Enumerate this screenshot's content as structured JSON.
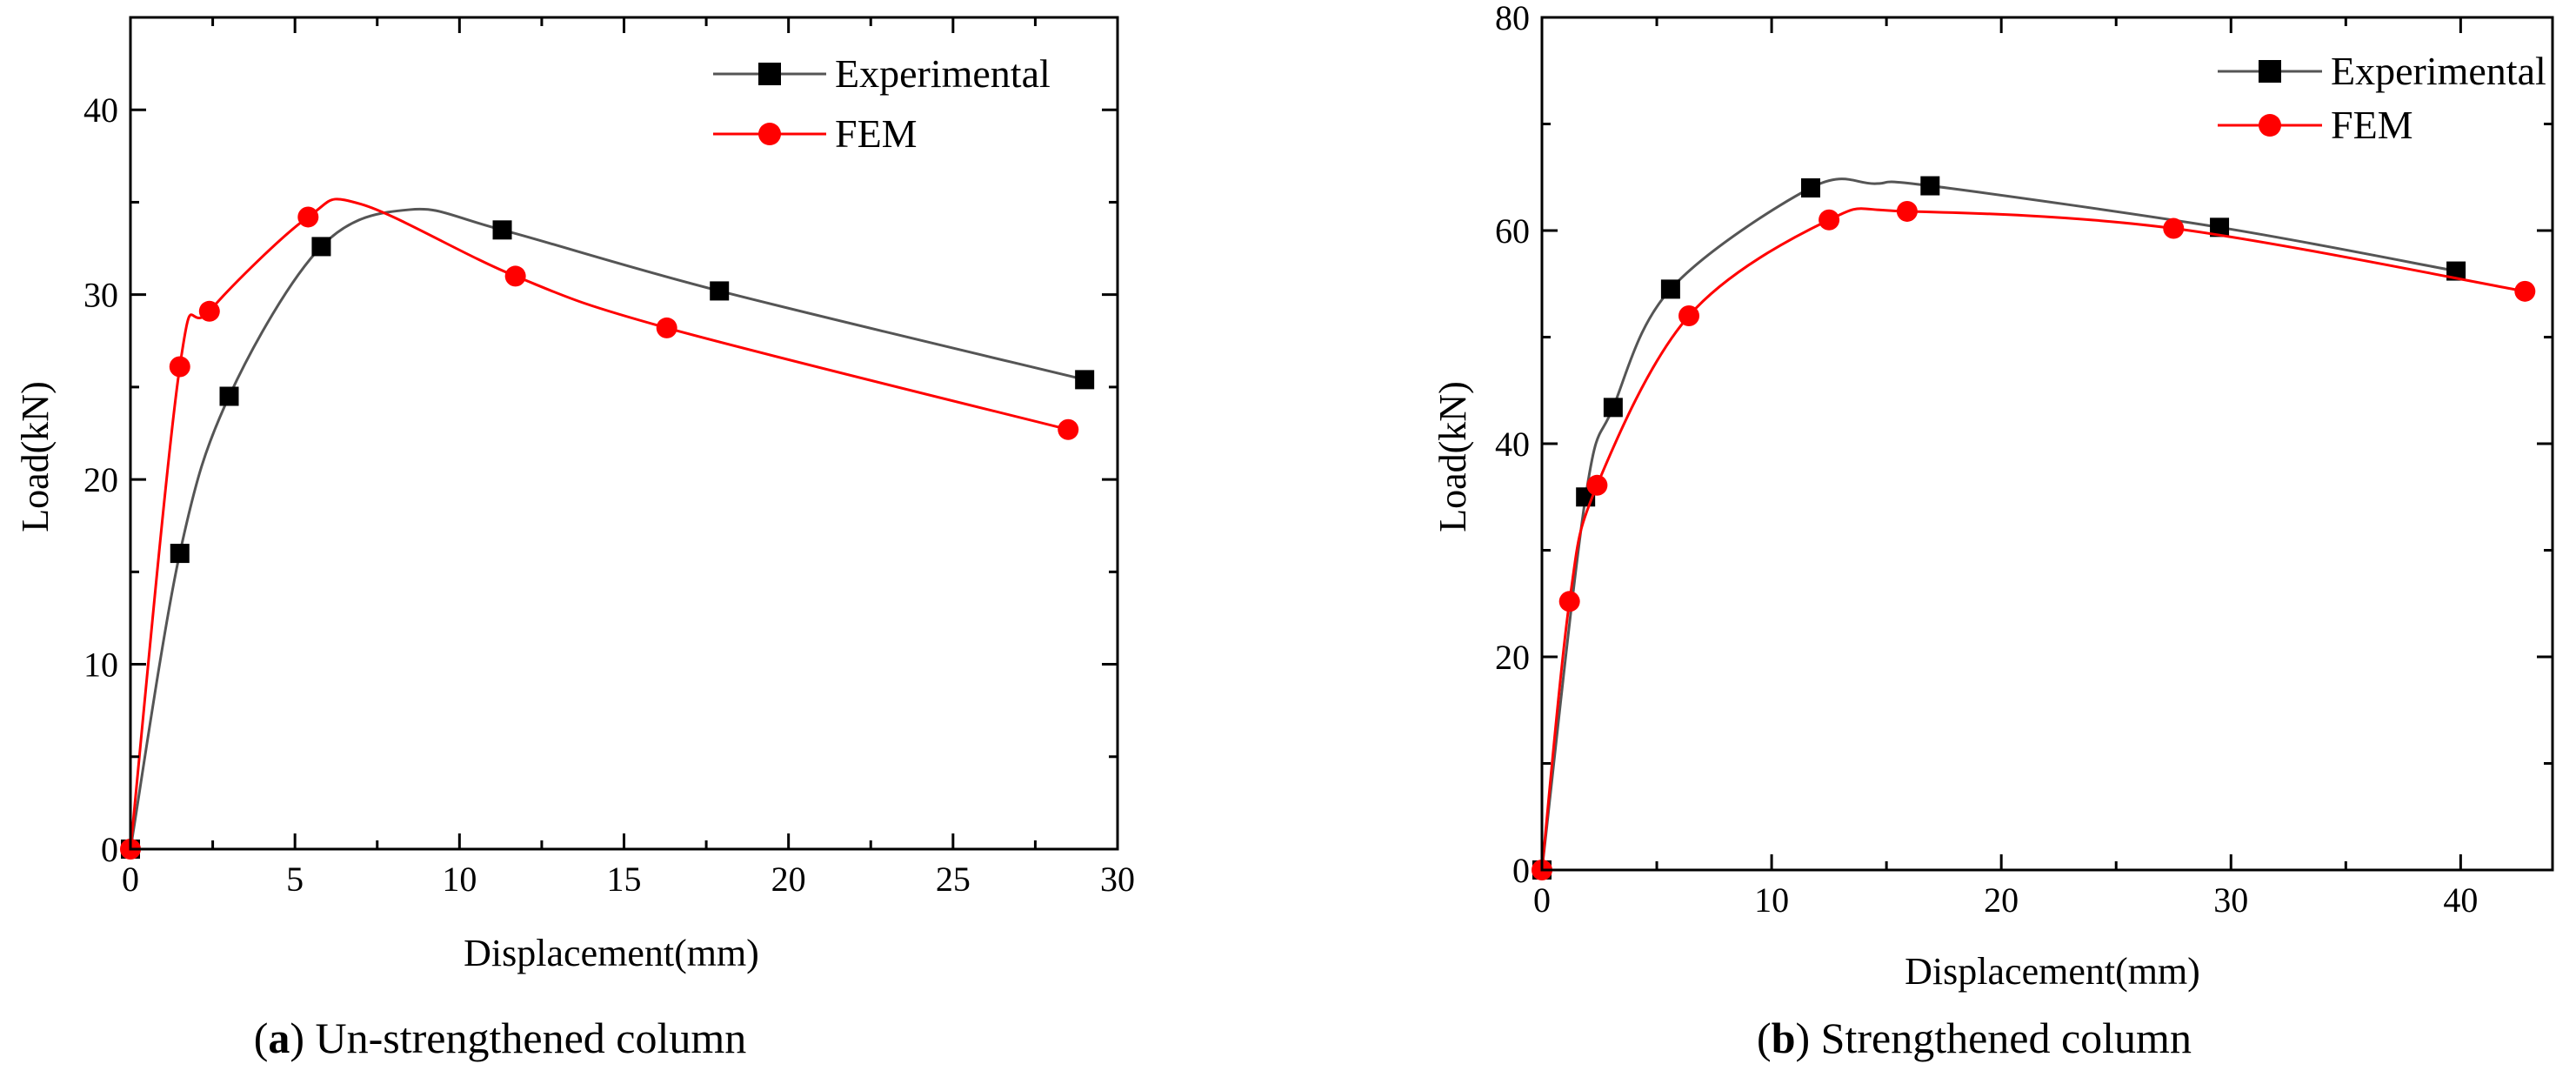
{
  "chart_data": [
    {
      "id": "a",
      "type": "line",
      "title": "",
      "caption": {
        "label": "a",
        "open": "(",
        "close": ")",
        "text": " Un-strengthened column"
      },
      "xlabel": "Displacement(mm)",
      "ylabel": "Load(kN)",
      "xlim": [
        0,
        30
      ],
      "ylim": [
        0,
        45
      ],
      "xticks": [
        0,
        5,
        10,
        15,
        20,
        25,
        30
      ],
      "yticks": [
        0,
        10,
        20,
        30,
        40
      ],
      "minor_x": 2.5,
      "minor_y": 5,
      "grid": false,
      "legend_position": "top-right",
      "series": [
        {
          "name": "Experimental",
          "color": "#555555",
          "marker": "square",
          "marker_color": "#000000",
          "curve": [
            [
              0,
              0
            ],
            [
              1.5,
              16
            ],
            [
              3,
              24.5
            ],
            [
              5.8,
              32.6
            ],
            [
              8.5,
              34.6
            ],
            [
              11.3,
              33.5
            ],
            [
              17.9,
              30.2
            ],
            [
              29,
              25.4
            ]
          ],
          "points": [
            [
              0,
              0
            ],
            [
              1.5,
              16
            ],
            [
              3,
              24.5
            ],
            [
              5.8,
              32.6
            ],
            [
              11.3,
              33.5
            ],
            [
              17.9,
              30.2
            ],
            [
              29,
              25.4
            ]
          ]
        },
        {
          "name": "FEM",
          "color": "#ff0000",
          "marker": "circle",
          "marker_color": "#ff0000",
          "curve": [
            [
              0,
              0
            ],
            [
              1.5,
              26.1
            ],
            [
              2.4,
              29.1
            ],
            [
              5.4,
              34.2
            ],
            [
              7,
              34.9
            ],
            [
              11.7,
              31
            ],
            [
              16.3,
              28.2
            ],
            [
              28.5,
              22.7
            ]
          ],
          "points": [
            [
              0,
              0
            ],
            [
              1.5,
              26.1
            ],
            [
              2.4,
              29.1
            ],
            [
              5.4,
              34.2
            ],
            [
              11.7,
              31
            ],
            [
              16.3,
              28.2
            ],
            [
              28.5,
              22.7
            ]
          ]
        }
      ]
    },
    {
      "id": "b",
      "type": "line",
      "title": "",
      "caption": {
        "label": "b",
        "open": "(",
        "close": ")",
        "text": " Strengthened column"
      },
      "xlabel": "Displacement(mm)",
      "ylabel": "Load(kN)",
      "xlim": [
        0,
        44
      ],
      "ylim": [
        0,
        80
      ],
      "xticks": [
        0,
        10,
        20,
        30,
        40
      ],
      "yticks": [
        0,
        20,
        40,
        60,
        80
      ],
      "minor_x": 5,
      "minor_y": 10,
      "grid": false,
      "legend_position": "top-right",
      "series": [
        {
          "name": "Experimental",
          "color": "#555555",
          "marker": "square",
          "marker_color": "#000000",
          "curve": [
            [
              0,
              0
            ],
            [
              1.9,
              35
            ],
            [
              3.1,
              43.4
            ],
            [
              5.6,
              54.5
            ],
            [
              11.7,
              64
            ],
            [
              14.5,
              64.4
            ],
            [
              16.9,
              64.2
            ],
            [
              29.5,
              60.3
            ],
            [
              39.8,
              56.2
            ]
          ],
          "points": [
            [
              0,
              0
            ],
            [
              1.9,
              35
            ],
            [
              3.1,
              43.4
            ],
            [
              5.6,
              54.5
            ],
            [
              11.7,
              64
            ],
            [
              16.9,
              64.2
            ],
            [
              29.5,
              60.3
            ],
            [
              39.8,
              56.2
            ]
          ]
        },
        {
          "name": "FEM",
          "color": "#ff0000",
          "marker": "circle",
          "marker_color": "#ff0000",
          "curve": [
            [
              0,
              0
            ],
            [
              1.2,
              25.2
            ],
            [
              2.4,
              36.1
            ],
            [
              6.4,
              52
            ],
            [
              12.5,
              61
            ],
            [
              15.9,
              61.8
            ],
            [
              27.5,
              60.2
            ],
            [
              42.8,
              54.3
            ]
          ],
          "points": [
            [
              0,
              0
            ],
            [
              1.2,
              25.2
            ],
            [
              2.4,
              36.1
            ],
            [
              6.4,
              52
            ],
            [
              12.5,
              61
            ],
            [
              15.9,
              61.8
            ],
            [
              27.5,
              60.2
            ],
            [
              42.8,
              54.3
            ]
          ]
        }
      ]
    }
  ]
}
